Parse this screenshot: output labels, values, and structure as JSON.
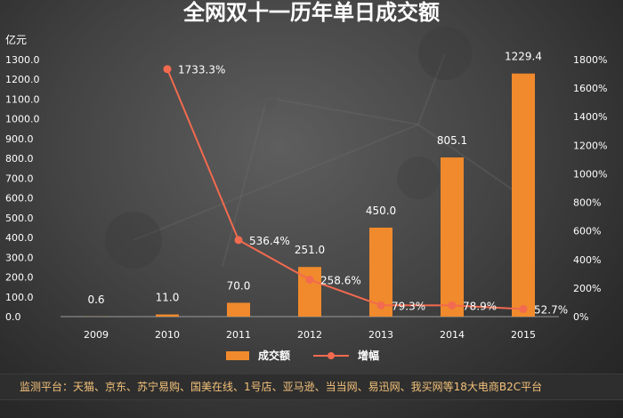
{
  "chart_data": {
    "type": "bar",
    "title": "全网双十一历年单日成交额",
    "y_left_label": "亿元",
    "categories": [
      "2009",
      "2010",
      "2011",
      "2012",
      "2013",
      "2014",
      "2015"
    ],
    "y_left_ticks": [
      "0.0",
      "100.0",
      "200.0",
      "300.0",
      "400.0",
      "500.0",
      "600.0",
      "700.0",
      "800.0",
      "900.0",
      "1000.0",
      "1100.0",
      "1200.0",
      "1300.0"
    ],
    "y_right_ticks": [
      "0%",
      "200%",
      "400%",
      "600%",
      "800%",
      "1000%",
      "1200%",
      "1400%",
      "1600%",
      "1800%"
    ],
    "ylim_left": [
      0,
      1300
    ],
    "ylim_right": [
      0,
      1800
    ],
    "series": [
      {
        "name": "成交额",
        "type": "bar",
        "axis": "left",
        "color": "#f08a2c",
        "values": [
          0.6,
          11.0,
          70.0,
          251.0,
          450.0,
          805.1,
          1229.4
        ],
        "labels": [
          "0.6",
          "11.0",
          "70.0",
          "251.0",
          "450.0",
          "805.1",
          "1229.4"
        ]
      },
      {
        "name": "增幅",
        "type": "line",
        "axis": "right",
        "color": "#f26a4f",
        "values": [
          null,
          1733.3,
          536.4,
          258.6,
          79.3,
          78.9,
          52.7
        ],
        "labels": [
          "",
          "1733.3%",
          "536.4%",
          "258.6%",
          "79.3%",
          "78.9%",
          "52.7%"
        ]
      }
    ],
    "legend_placement": "bottom",
    "grid": false
  },
  "footer": {
    "note": "监测平台：天猫、京东、苏宁易购、国美在线、1号店、亚马逊、当当网、易迅网、我买网等18大电商B2C平台"
  }
}
